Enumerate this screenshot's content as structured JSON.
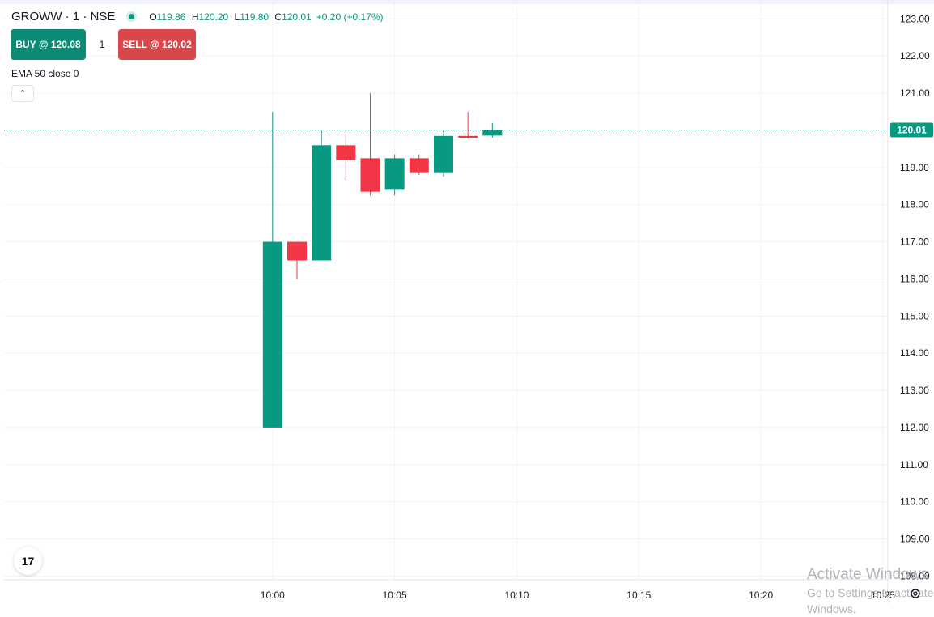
{
  "header": {
    "symbol": "GROWW · 1 · NSE",
    "o_label": "O",
    "o_value": "119.86",
    "h_label": "H",
    "h_value": "120.20",
    "l_label": "L",
    "l_value": "119.80",
    "c_label": "C",
    "c_value": "120.01",
    "change": "+0.20 (+0.17%)"
  },
  "trade": {
    "buy_label": "BUY @ 120.08",
    "quantity": "1",
    "sell_label": "SELL @ 120.02"
  },
  "indicator": {
    "label": "EMA 50 close 0"
  },
  "watermark": {
    "line1": "Activate Windows",
    "line2": "Go to Settings to activate Windows."
  },
  "logo": {
    "text": "17"
  },
  "colors": {
    "up": "#089981",
    "down": "#f23645",
    "grid": "#f0f3fa",
    "last_price_bg": "#089981"
  },
  "chart_data": {
    "type": "candlestick",
    "title": "",
    "xlabel": "",
    "ylabel": "",
    "ylim": [
      107.9,
      123.4
    ],
    "xlim_minutes": [
      -11,
      25.2
    ],
    "y_ticks": [
      123,
      122,
      121,
      120,
      119,
      118,
      117,
      116,
      115,
      114,
      113,
      112,
      111,
      110,
      109,
      108
    ],
    "y_tick_labels": [
      "123.00",
      "122.00",
      "121.00",
      "120.00",
      "119.00",
      "118.00",
      "117.00",
      "116.00",
      "115.00",
      "114.00",
      "113.00",
      "112.00",
      "111.00",
      "110.00",
      "109.00",
      "108.00"
    ],
    "x_ticks": [
      "10:00",
      "10:05",
      "10:10",
      "10:15",
      "10:20",
      "10:25"
    ],
    "last_price": "120.01",
    "grid": true,
    "candles": [
      {
        "time": "10:00",
        "open": 112.0,
        "high": 120.5,
        "low": 112.0,
        "close": 117.0
      },
      {
        "time": "10:01",
        "open": 117.0,
        "high": 117.0,
        "low": 116.0,
        "close": 116.5
      },
      {
        "time": "10:02",
        "open": 116.5,
        "high": 120.0,
        "low": 116.5,
        "close": 119.6
      },
      {
        "time": "10:03",
        "open": 119.6,
        "high": 120.0,
        "low": 118.65,
        "close": 119.2
      },
      {
        "time": "10:04",
        "open": 119.25,
        "high": 121.0,
        "low": 118.25,
        "close": 118.35
      },
      {
        "time": "10:05",
        "open": 118.4,
        "high": 119.35,
        "low": 118.25,
        "close": 119.25
      },
      {
        "time": "10:06",
        "open": 119.25,
        "high": 119.35,
        "low": 118.8,
        "close": 118.85
      },
      {
        "time": "10:07",
        "open": 118.85,
        "high": 120.0,
        "low": 118.75,
        "close": 119.85
      },
      {
        "time": "10:08",
        "open": 119.85,
        "high": 120.5,
        "low": 119.78,
        "close": 119.8
      },
      {
        "time": "10:09",
        "open": 119.86,
        "high": 120.2,
        "low": 119.8,
        "close": 120.01
      }
    ]
  }
}
